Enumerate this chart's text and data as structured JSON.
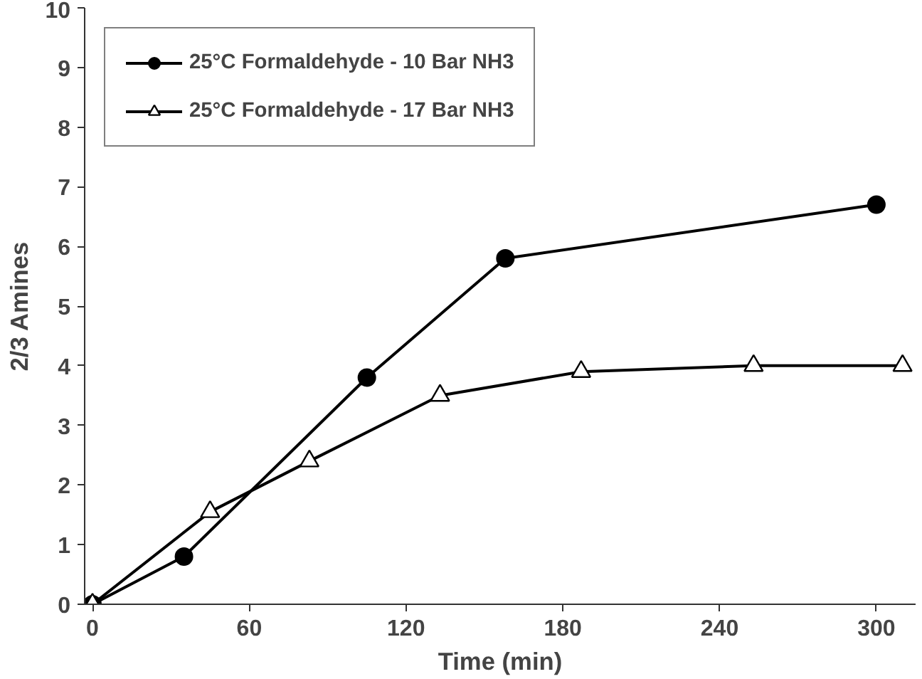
{
  "chart_data": {
    "type": "line",
    "xlabel": "Time (min)",
    "ylabel": "2/3 Amines",
    "xlim": [
      -3,
      315
    ],
    "xticks": [
      0,
      60,
      120,
      180,
      240,
      300
    ],
    "ylim": [
      0,
      10
    ],
    "yticks": [
      0,
      1,
      2,
      3,
      4,
      5,
      6,
      7,
      8,
      9,
      10
    ],
    "grid": false,
    "legend": "top left",
    "line_style": "solid",
    "series": [
      {
        "name": "25°C Formaldehyde - 10 Bar NH3",
        "color": "#000000",
        "marker": "circle",
        "x": [
          0,
          35,
          105,
          158,
          300
        ],
        "values": [
          0,
          0.8,
          3.8,
          5.8,
          6.7
        ]
      },
      {
        "name": "25°C Formaldehyde - 17 Bar NH3",
        "color": "#000000",
        "marker": "triangle",
        "x": [
          0,
          45,
          83,
          133,
          187,
          253,
          310
        ],
        "values": [
          0,
          1.55,
          2.4,
          3.5,
          3.9,
          4.0,
          4.0
        ]
      }
    ]
  }
}
